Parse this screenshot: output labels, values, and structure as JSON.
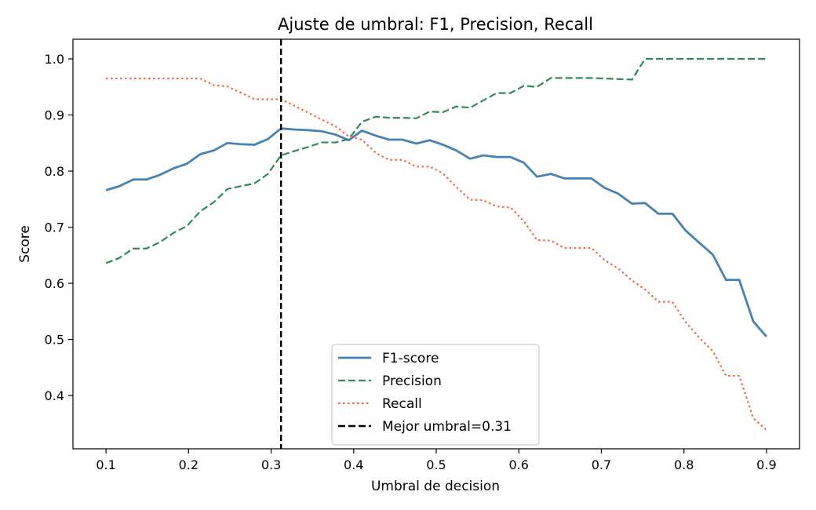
{
  "chart_data": {
    "type": "line",
    "title": "Ajuste de umbral: F1, Precision, Recall",
    "xlabel": "Umbral de decision",
    "ylabel": "Score",
    "xlim": [
      0.06,
      0.94
    ],
    "ylim": [
      0.305,
      1.035
    ],
    "xticks": [
      0.1,
      0.2,
      0.3,
      0.4,
      0.5,
      0.6,
      0.7,
      0.8,
      0.9
    ],
    "xtick_labels": [
      "0.1",
      "0.2",
      "0.3",
      "0.4",
      "0.5",
      "0.6",
      "0.7",
      "0.8",
      "0.9"
    ],
    "yticks": [
      0.4,
      0.5,
      0.6,
      0.7,
      0.8,
      0.9,
      1.0
    ],
    "ytick_labels": [
      "0.4",
      "0.5",
      "0.6",
      "0.7",
      "0.8",
      "0.9",
      "1.0"
    ],
    "grid": false,
    "legend_position": "lower-center",
    "x": [
      0.1,
      0.116,
      0.133,
      0.149,
      0.165,
      0.182,
      0.198,
      0.214,
      0.231,
      0.247,
      0.263,
      0.28,
      0.296,
      0.312,
      0.329,
      0.345,
      0.361,
      0.378,
      0.394,
      0.41,
      0.427,
      0.443,
      0.459,
      0.476,
      0.492,
      0.508,
      0.524,
      0.541,
      0.557,
      0.573,
      0.59,
      0.606,
      0.622,
      0.639,
      0.655,
      0.671,
      0.688,
      0.704,
      0.72,
      0.737,
      0.753,
      0.769,
      0.786,
      0.802,
      0.818,
      0.835,
      0.851,
      0.867,
      0.884,
      0.9
    ],
    "series": [
      {
        "name": "F1-score",
        "color": "#4682b4",
        "style": "solid",
        "values": [
          0.766,
          0.773,
          0.785,
          0.785,
          0.793,
          0.805,
          0.813,
          0.83,
          0.837,
          0.85,
          0.848,
          0.847,
          0.857,
          0.876,
          0.874,
          0.873,
          0.871,
          0.865,
          0.855,
          0.872,
          0.863,
          0.856,
          0.856,
          0.849,
          0.855,
          0.847,
          0.837,
          0.822,
          0.828,
          0.825,
          0.825,
          0.815,
          0.79,
          0.795,
          0.787,
          0.787,
          0.787,
          0.77,
          0.76,
          0.742,
          0.743,
          0.724,
          0.724,
          0.694,
          0.673,
          0.651,
          0.606,
          0.606,
          0.532,
          0.505
        ]
      },
      {
        "name": "Precision",
        "color": "#2e8b57",
        "style": "dashed",
        "values": [
          0.636,
          0.645,
          0.662,
          0.662,
          0.673,
          0.69,
          0.702,
          0.728,
          0.745,
          0.768,
          0.773,
          0.778,
          0.795,
          0.828,
          0.836,
          0.843,
          0.851,
          0.851,
          0.857,
          0.888,
          0.897,
          0.895,
          0.895,
          0.894,
          0.906,
          0.905,
          0.915,
          0.913,
          0.926,
          0.939,
          0.939,
          0.952,
          0.95,
          0.966,
          0.966,
          0.966,
          0.966,
          0.965,
          0.964,
          0.963,
          1.0,
          1.0,
          1.0,
          1.0,
          1.0,
          1.0,
          1.0,
          1.0,
          1.0,
          1.0
        ]
      },
      {
        "name": "Recall",
        "color": "#ff6347",
        "style": "dotted",
        "values": [
          0.965,
          0.965,
          0.965,
          0.965,
          0.965,
          0.965,
          0.965,
          0.965,
          0.953,
          0.951,
          0.94,
          0.928,
          0.928,
          0.928,
          0.916,
          0.904,
          0.892,
          0.88,
          0.862,
          0.856,
          0.832,
          0.82,
          0.82,
          0.808,
          0.808,
          0.796,
          0.772,
          0.749,
          0.748,
          0.737,
          0.735,
          0.711,
          0.677,
          0.676,
          0.663,
          0.663,
          0.663,
          0.641,
          0.627,
          0.605,
          0.589,
          0.567,
          0.567,
          0.531,
          0.504,
          0.479,
          0.435,
          0.435,
          0.36,
          0.338
        ]
      }
    ],
    "vline": {
      "name": "Mejor umbral=0.31",
      "x": 0.312,
      "color": "#000000",
      "style": "dashed"
    }
  }
}
